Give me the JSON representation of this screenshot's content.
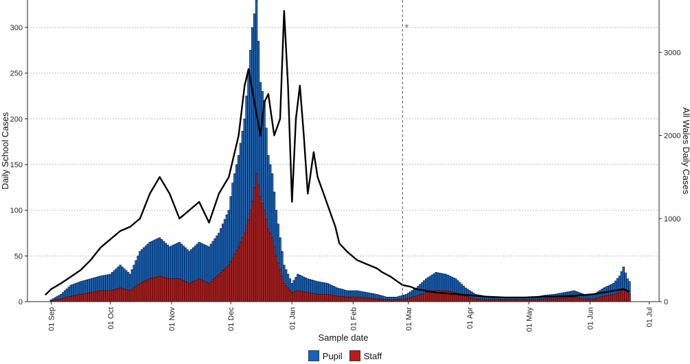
{
  "chart_data": {
    "type": "bar",
    "title": "",
    "xlabel": "Sample date",
    "ylabel_left": "Daily School Cases",
    "ylabel_right": "All Wales Daily Cases",
    "y_left_lim": [
      0,
      330
    ],
    "y_right_lim": [
      0,
      3630
    ],
    "y_left_ticks": [
      0,
      50,
      100,
      150,
      200,
      250,
      300
    ],
    "y_right_ticks": [
      0,
      1000,
      2000,
      3000
    ],
    "y_left_tick_labels": [
      "0",
      "50",
      "100",
      "150",
      "200",
      "250",
      "300"
    ],
    "y_right_tick_labels": [
      "0",
      "1000",
      "2000",
      "3000"
    ],
    "x_ticks": [
      "01 Sep",
      "01 Oct",
      "01 Nov",
      "01 Dec",
      "01 Jan",
      "01 Feb",
      "01 Mar",
      "01 Apr",
      "01 May",
      "01 Jun",
      "01 Jul"
    ],
    "x_ticks_days": [
      0,
      30,
      61,
      91,
      122,
      153,
      181,
      212,
      242,
      273,
      303
    ],
    "x_lim_days": [
      -12,
      308
    ],
    "grid": "horizontal",
    "bar_stacking": "overlaid",
    "annotation": {
      "text": "*",
      "x_day": 178,
      "y": 300,
      "line_style": "dashed"
    },
    "series": [
      {
        "name": "Pupil",
        "color": "#1565c0",
        "kind": "bar",
        "points": [
          [
            0,
            2
          ],
          [
            5,
            8
          ],
          [
            10,
            18
          ],
          [
            15,
            22
          ],
          [
            20,
            25
          ],
          [
            25,
            28
          ],
          [
            30,
            30
          ],
          [
            35,
            40
          ],
          [
            40,
            30
          ],
          [
            45,
            55
          ],
          [
            50,
            65
          ],
          [
            55,
            70
          ],
          [
            60,
            60
          ],
          [
            65,
            65
          ],
          [
            70,
            55
          ],
          [
            75,
            65
          ],
          [
            80,
            60
          ],
          [
            85,
            75
          ],
          [
            90,
            100
          ],
          [
            92,
            130
          ],
          [
            95,
            160
          ],
          [
            98,
            200
          ],
          [
            100,
            250
          ],
          [
            102,
            300
          ],
          [
            104,
            330
          ],
          [
            106,
            240
          ],
          [
            108,
            220
          ],
          [
            110,
            160
          ],
          [
            112,
            140
          ],
          [
            114,
            100
          ],
          [
            116,
            70
          ],
          [
            118,
            40
          ],
          [
            120,
            30
          ],
          [
            122,
            20
          ],
          [
            125,
            30
          ],
          [
            130,
            25
          ],
          [
            135,
            22
          ],
          [
            140,
            20
          ],
          [
            145,
            15
          ],
          [
            150,
            12
          ],
          [
            155,
            12
          ],
          [
            160,
            10
          ],
          [
            165,
            8
          ],
          [
            170,
            5
          ],
          [
            175,
            5
          ],
          [
            180,
            8
          ],
          [
            185,
            15
          ],
          [
            190,
            25
          ],
          [
            195,
            32
          ],
          [
            200,
            30
          ],
          [
            205,
            25
          ],
          [
            210,
            15
          ],
          [
            215,
            8
          ],
          [
            220,
            6
          ],
          [
            225,
            5
          ],
          [
            230,
            5
          ],
          [
            235,
            5
          ],
          [
            240,
            5
          ],
          [
            245,
            5
          ],
          [
            250,
            7
          ],
          [
            255,
            8
          ],
          [
            260,
            10
          ],
          [
            265,
            12
          ],
          [
            270,
            8
          ],
          [
            275,
            8
          ],
          [
            280,
            15
          ],
          [
            285,
            20
          ],
          [
            288,
            28
          ],
          [
            290,
            38
          ],
          [
            292,
            25
          ],
          [
            293,
            22
          ]
        ]
      },
      {
        "name": "Staff",
        "color": "#b71c1c",
        "kind": "bar",
        "points": [
          [
            0,
            1
          ],
          [
            5,
            3
          ],
          [
            10,
            6
          ],
          [
            15,
            8
          ],
          [
            20,
            10
          ],
          [
            25,
            12
          ],
          [
            30,
            12
          ],
          [
            35,
            15
          ],
          [
            40,
            12
          ],
          [
            45,
            20
          ],
          [
            50,
            25
          ],
          [
            55,
            28
          ],
          [
            60,
            25
          ],
          [
            65,
            25
          ],
          [
            70,
            20
          ],
          [
            75,
            25
          ],
          [
            80,
            20
          ],
          [
            85,
            30
          ],
          [
            90,
            40
          ],
          [
            95,
            60
          ],
          [
            98,
            75
          ],
          [
            100,
            90
          ],
          [
            102,
            110
          ],
          [
            104,
            140
          ],
          [
            106,
            115
          ],
          [
            108,
            100
          ],
          [
            110,
            80
          ],
          [
            112,
            70
          ],
          [
            114,
            50
          ],
          [
            116,
            35
          ],
          [
            118,
            20
          ],
          [
            120,
            15
          ],
          [
            122,
            10
          ],
          [
            125,
            12
          ],
          [
            130,
            10
          ],
          [
            135,
            8
          ],
          [
            140,
            8
          ],
          [
            145,
            6
          ],
          [
            150,
            5
          ],
          [
            155,
            5
          ],
          [
            160,
            4
          ],
          [
            165,
            3
          ],
          [
            170,
            2
          ],
          [
            175,
            2
          ],
          [
            180,
            3
          ],
          [
            185,
            6
          ],
          [
            190,
            10
          ],
          [
            195,
            12
          ],
          [
            200,
            12
          ],
          [
            205,
            10
          ],
          [
            210,
            6
          ],
          [
            215,
            3
          ],
          [
            220,
            2
          ],
          [
            225,
            2
          ],
          [
            230,
            2
          ],
          [
            235,
            2
          ],
          [
            240,
            2
          ],
          [
            245,
            2
          ],
          [
            250,
            3
          ],
          [
            255,
            3
          ],
          [
            260,
            4
          ],
          [
            265,
            5
          ],
          [
            270,
            3
          ],
          [
            275,
            3
          ],
          [
            280,
            6
          ],
          [
            285,
            8
          ],
          [
            288,
            10
          ],
          [
            290,
            14
          ],
          [
            293,
            8
          ]
        ]
      },
      {
        "name": "",
        "color": "#000000",
        "kind": "line",
        "axis": "right",
        "points": [
          [
            -3,
            80
          ],
          [
            0,
            150
          ],
          [
            5,
            220
          ],
          [
            10,
            300
          ],
          [
            15,
            380
          ],
          [
            20,
            500
          ],
          [
            25,
            650
          ],
          [
            30,
            750
          ],
          [
            35,
            850
          ],
          [
            40,
            900
          ],
          [
            45,
            1000
          ],
          [
            50,
            1300
          ],
          [
            55,
            1500
          ],
          [
            60,
            1300
          ],
          [
            65,
            1000
          ],
          [
            70,
            1100
          ],
          [
            75,
            1200
          ],
          [
            80,
            950
          ],
          [
            85,
            1300
          ],
          [
            90,
            1500
          ],
          [
            95,
            2000
          ],
          [
            98,
            2600
          ],
          [
            100,
            2800
          ],
          [
            103,
            2400
          ],
          [
            106,
            2000
          ],
          [
            108,
            2400
          ],
          [
            110,
            2500
          ],
          [
            113,
            2000
          ],
          [
            116,
            2200
          ],
          [
            118,
            3500
          ],
          [
            120,
            2600
          ],
          [
            122,
            1200
          ],
          [
            124,
            2200
          ],
          [
            126,
            2600
          ],
          [
            128,
            2000
          ],
          [
            130,
            1300
          ],
          [
            133,
            1800
          ],
          [
            135,
            1500
          ],
          [
            138,
            1300
          ],
          [
            141,
            1100
          ],
          [
            144,
            900
          ],
          [
            146,
            700
          ],
          [
            150,
            600
          ],
          [
            155,
            500
          ],
          [
            160,
            450
          ],
          [
            165,
            400
          ],
          [
            168,
            350
          ],
          [
            172,
            300
          ],
          [
            175,
            250
          ],
          [
            178,
            200
          ],
          [
            182,
            180
          ],
          [
            185,
            150
          ],
          [
            190,
            130
          ],
          [
            195,
            110
          ],
          [
            200,
            100
          ],
          [
            205,
            90
          ],
          [
            210,
            80
          ],
          [
            215,
            70
          ],
          [
            220,
            60
          ],
          [
            225,
            55
          ],
          [
            230,
            50
          ],
          [
            235,
            50
          ],
          [
            240,
            50
          ],
          [
            245,
            55
          ],
          [
            250,
            60
          ],
          [
            255,
            60
          ],
          [
            260,
            65
          ],
          [
            265,
            70
          ],
          [
            270,
            80
          ],
          [
            275,
            90
          ],
          [
            280,
            110
          ],
          [
            285,
            130
          ],
          [
            290,
            150
          ],
          [
            293,
            120
          ]
        ]
      }
    ]
  }
}
